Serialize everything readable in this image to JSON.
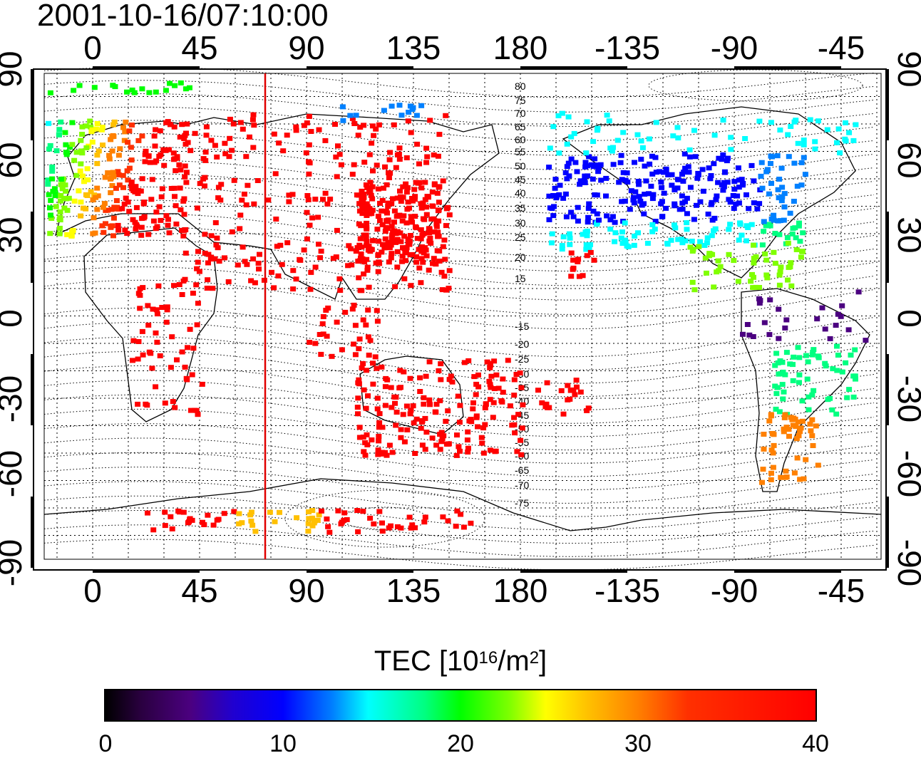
{
  "timestamp": "2001-10-16/07:10:00",
  "map": {
    "lon_ticks": [
      "0",
      "45",
      "90",
      "135",
      "180",
      "-135",
      "-90",
      "-45"
    ],
    "lat_ticks": [
      "90",
      "60",
      "30",
      "0",
      "-30",
      "-60",
      "-90"
    ],
    "contour_labels": [
      "80",
      "75",
      "70",
      "65",
      "60",
      "55",
      "50",
      "45",
      "40",
      "35",
      "30",
      "25",
      "20",
      "15",
      "-15",
      "-20",
      "-25",
      "-30",
      "-35",
      "-40",
      "-45",
      "-50",
      "-55",
      "-60",
      "-65",
      "-70",
      "-75"
    ],
    "terminator_longitude": 72
  },
  "colorbar": {
    "title_main": "TEC  [10",
    "title_exp": "16",
    "title_mid": "/m",
    "title_exp2": "2",
    "title_end": "]",
    "ticks": [
      "0",
      "10",
      "20",
      "30",
      "40"
    ],
    "min": 0,
    "max": 40
  },
  "colors": {
    "high": "#ff0000",
    "low": "#000000"
  }
}
